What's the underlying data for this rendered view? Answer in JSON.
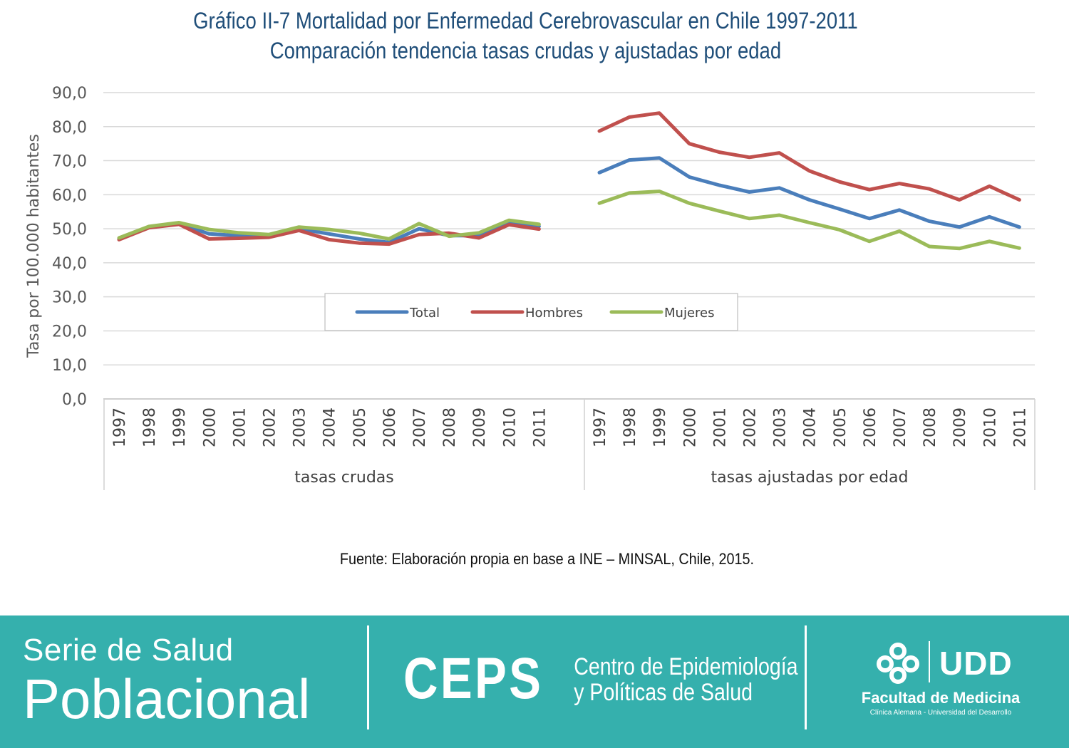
{
  "header": {
    "title_line1": "Gráfico II-7 Mortalidad por Enfermedad Cerebrovascular en Chile 1997-2011",
    "title_line2": "Comparación tendencia tasas crudas y ajustadas por edad"
  },
  "source": "Fuente: Elaboración propia en base a INE – MINSAL, Chile, 2015.",
  "footer": {
    "series_line1": "Serie de Salud",
    "series_line2": "Poblacional",
    "ceps": "CEPS",
    "ceps_line1": "Centro de Epidemiología",
    "ceps_line2": "y Políticas de Salud",
    "udd": "UDD",
    "faculty": "Facultad de Medicina",
    "faculty_sub": "Clínica Alemana - Universidad del Desarrollo"
  },
  "chart_data": {
    "type": "line",
    "title": "Gráfico II-7 Mortalidad por Enfermedad Cerebrovascular en Chile 1997-2011",
    "subtitle": "Comparación tendencia tasas crudas y ajustadas por edad",
    "ylabel": "Tasa por 100.000 habitantes",
    "ylim": [
      0,
      90
    ],
    "y_ticks": [
      "0,0",
      "10,0",
      "20,0",
      "30,0",
      "40,0",
      "50,0",
      "60,0",
      "70,0",
      "80,0",
      "90,0"
    ],
    "grid": true,
    "legend_position": "center",
    "groups": [
      {
        "label": "tasas crudas",
        "categories": [
          "1997",
          "1998",
          "1999",
          "2000",
          "2001",
          "2002",
          "2003",
          "2004",
          "2005",
          "2006",
          "2007",
          "2008",
          "2009",
          "2010",
          "2011"
        ],
        "series": [
          {
            "name": "Total",
            "values": [
              47.0,
              50.5,
              51.5,
              48.5,
              48.0,
              48.0,
              50.0,
              48.5,
              47.0,
              46.0,
              50.0,
              48.0,
              48.0,
              52.0,
              50.7
            ]
          },
          {
            "name": "Hombres",
            "values": [
              46.8,
              50.3,
              51.3,
              47.0,
              47.2,
              47.5,
              49.5,
              46.8,
              45.8,
              45.5,
              48.3,
              48.7,
              47.3,
              51.2,
              49.9
            ]
          },
          {
            "name": "Mujeres",
            "values": [
              47.3,
              50.7,
              51.8,
              49.8,
              48.8,
              48.3,
              50.5,
              49.8,
              48.7,
              47.0,
              51.5,
              47.8,
              48.8,
              52.5,
              51.3
            ]
          }
        ]
      },
      {
        "label": "tasas ajustadas por edad",
        "categories": [
          "1997",
          "1998",
          "1999",
          "2000",
          "2001",
          "2002",
          "2003",
          "2004",
          "2005",
          "2006",
          "2007",
          "2008",
          "2009",
          "2010",
          "2011"
        ],
        "series": [
          {
            "name": "Total",
            "values": [
              66.5,
              70.2,
              70.8,
              65.2,
              62.8,
              60.8,
              62.0,
              58.5,
              55.8,
              53.0,
              55.5,
              52.2,
              50.5,
              53.5,
              50.5
            ]
          },
          {
            "name": "Hombres",
            "values": [
              78.7,
              82.8,
              84.0,
              75.0,
              72.5,
              71.0,
              72.3,
              67.0,
              63.8,
              61.5,
              63.3,
              61.7,
              58.5,
              62.5,
              58.5
            ]
          },
          {
            "name": "Mujeres",
            "values": [
              57.5,
              60.5,
              61.0,
              57.5,
              55.2,
              53.0,
              54.0,
              51.8,
              49.7,
              46.3,
              49.3,
              44.8,
              44.2,
              46.3,
              44.3
            ]
          }
        ]
      }
    ],
    "colors": {
      "Total": "#4a7ebb",
      "Hombres": "#c0504d",
      "Mujeres": "#9bbb59"
    }
  }
}
